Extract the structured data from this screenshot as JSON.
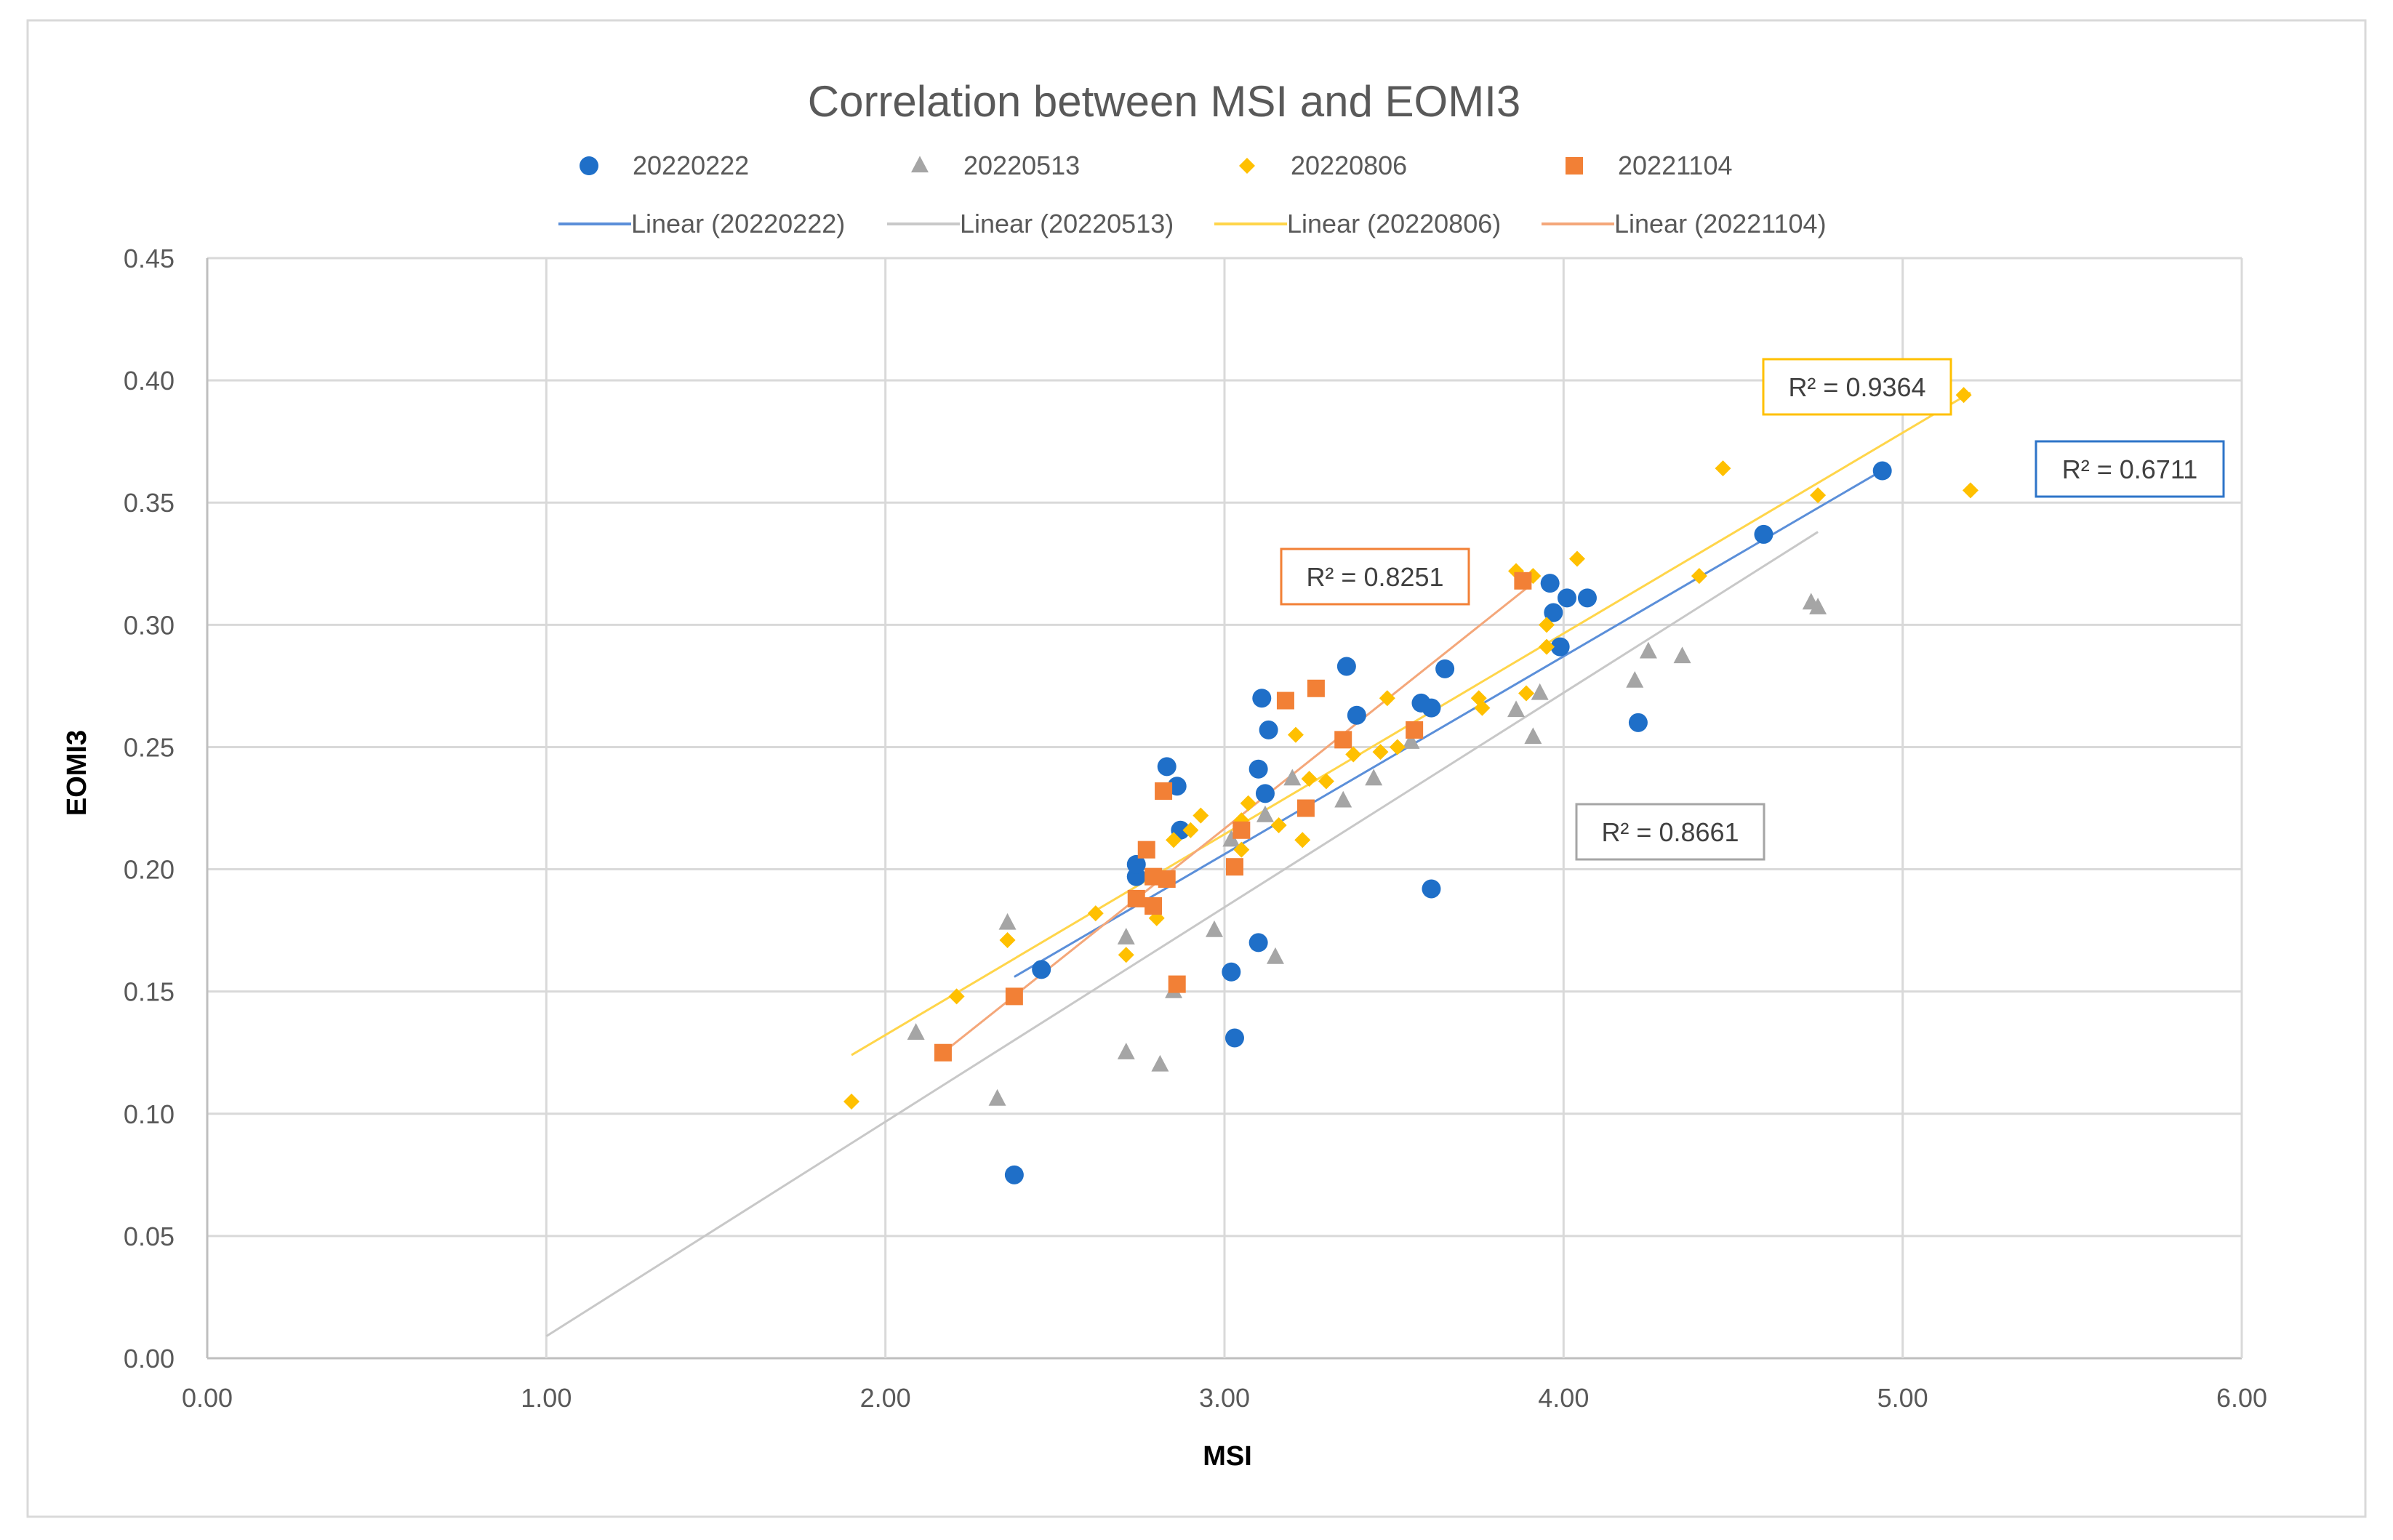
{
  "chart_data": {
    "type": "scatter",
    "title": "Correlation between MSI and EOMI3",
    "xlabel": "MSI",
    "ylabel": "EOMI3",
    "xlim": [
      0,
      6
    ],
    "ylim": [
      0,
      0.45
    ],
    "x_ticks": [
      "0.00",
      "1.00",
      "2.00",
      "3.00",
      "4.00",
      "5.00",
      "6.00"
    ],
    "y_ticks": [
      "0.00",
      "0.05",
      "0.10",
      "0.15",
      "0.20",
      "0.25",
      "0.30",
      "0.35",
      "0.40",
      "0.45"
    ],
    "grid": true,
    "legend_position": "top",
    "series": [
      {
        "name": "20220222",
        "marker": "circle",
        "color": "#1f6fc8",
        "trend_label": "Linear (20220222)",
        "trend_color": "#5b8fd9",
        "trend_x": [
          2.38,
          4.95
        ],
        "trend_y": [
          0.156,
          0.364
        ],
        "r2_label": "R² = 0.6711",
        "points": [
          [
            2.38,
            0.075
          ],
          [
            2.46,
            0.159
          ],
          [
            2.74,
            0.197
          ],
          [
            2.74,
            0.202
          ],
          [
            2.83,
            0.242
          ],
          [
            2.86,
            0.234
          ],
          [
            2.87,
            0.216
          ],
          [
            3.02,
            0.158
          ],
          [
            3.03,
            0.131
          ],
          [
            3.1,
            0.17
          ],
          [
            3.1,
            0.241
          ],
          [
            3.11,
            0.27
          ],
          [
            3.12,
            0.231
          ],
          [
            3.13,
            0.257
          ],
          [
            3.36,
            0.283
          ],
          [
            3.39,
            0.263
          ],
          [
            3.58,
            0.268
          ],
          [
            3.61,
            0.192
          ],
          [
            3.61,
            0.266
          ],
          [
            3.65,
            0.282
          ],
          [
            3.96,
            0.317
          ],
          [
            3.97,
            0.305
          ],
          [
            3.99,
            0.291
          ],
          [
            4.01,
            0.311
          ],
          [
            4.07,
            0.311
          ],
          [
            4.22,
            0.26
          ],
          [
            4.59,
            0.337
          ],
          [
            4.94,
            0.363
          ]
        ]
      },
      {
        "name": "20220513",
        "marker": "triangle",
        "color": "#a5a5a5",
        "trend_label": "Linear (20220513)",
        "trend_color": "#c8c8c8",
        "trend_x": [
          1.0,
          4.75
        ],
        "trend_y": [
          0.009,
          0.338
        ],
        "r2_label": "R² = 0.8661",
        "points": [
          [
            2.09,
            0.133
          ],
          [
            2.33,
            0.106
          ],
          [
            2.36,
            0.178
          ],
          [
            2.71,
            0.125
          ],
          [
            2.71,
            0.172
          ],
          [
            2.81,
            0.12
          ],
          [
            2.85,
            0.15
          ],
          [
            2.97,
            0.175
          ],
          [
            3.02,
            0.212
          ],
          [
            3.12,
            0.222
          ],
          [
            3.15,
            0.164
          ],
          [
            3.2,
            0.237
          ],
          [
            3.35,
            0.228
          ],
          [
            3.44,
            0.237
          ],
          [
            3.55,
            0.252
          ],
          [
            3.86,
            0.265
          ],
          [
            3.91,
            0.254
          ],
          [
            3.93,
            0.272
          ],
          [
            4.21,
            0.277
          ],
          [
            4.25,
            0.289
          ],
          [
            4.35,
            0.287
          ],
          [
            4.73,
            0.309
          ],
          [
            4.75,
            0.307
          ]
        ]
      },
      {
        "name": "20220806",
        "marker": "diamond",
        "color": "#ffc000",
        "trend_label": "Linear (20220806)",
        "trend_color": "#ffd54a",
        "trend_x": [
          1.9,
          5.2
        ],
        "trend_y": [
          0.124,
          0.395
        ],
        "r2_label": "R² = 0.9364",
        "points": [
          [
            1.9,
            0.105
          ],
          [
            2.21,
            0.148
          ],
          [
            2.36,
            0.171
          ],
          [
            2.62,
            0.182
          ],
          [
            2.71,
            0.165
          ],
          [
            2.8,
            0.18
          ],
          [
            2.83,
            0.196
          ],
          [
            2.85,
            0.212
          ],
          [
            2.9,
            0.216
          ],
          [
            2.93,
            0.222
          ],
          [
            3.05,
            0.208
          ],
          [
            3.05,
            0.22
          ],
          [
            3.07,
            0.227
          ],
          [
            3.16,
            0.218
          ],
          [
            3.21,
            0.255
          ],
          [
            3.23,
            0.212
          ],
          [
            3.25,
            0.237
          ],
          [
            3.3,
            0.236
          ],
          [
            3.38,
            0.247
          ],
          [
            3.46,
            0.248
          ],
          [
            3.48,
            0.27
          ],
          [
            3.51,
            0.25
          ],
          [
            3.75,
            0.27
          ],
          [
            3.76,
            0.266
          ],
          [
            3.86,
            0.322
          ],
          [
            3.89,
            0.272
          ],
          [
            3.91,
            0.32
          ],
          [
            3.95,
            0.3
          ],
          [
            3.95,
            0.291
          ],
          [
            4.04,
            0.327
          ],
          [
            4.4,
            0.32
          ],
          [
            4.47,
            0.364
          ],
          [
            4.75,
            0.353
          ],
          [
            5.18,
            0.394
          ],
          [
            5.2,
            0.355
          ]
        ]
      },
      {
        "name": "20221104",
        "marker": "square",
        "color": "#f28036",
        "trend_label": "Linear (20221104)",
        "trend_color": "#f4a77a",
        "trend_x": [
          2.17,
          3.9
        ],
        "trend_y": [
          0.125,
          0.316
        ],
        "r2_label": "R² = 0.8251",
        "points": [
          [
            2.17,
            0.125
          ],
          [
            2.38,
            0.148
          ],
          [
            2.74,
            0.188
          ],
          [
            2.77,
            0.208
          ],
          [
            2.79,
            0.185
          ],
          [
            2.79,
            0.197
          ],
          [
            2.82,
            0.232
          ],
          [
            2.83,
            0.196
          ],
          [
            2.86,
            0.153
          ],
          [
            3.03,
            0.201
          ],
          [
            3.05,
            0.216
          ],
          [
            3.18,
            0.269
          ],
          [
            3.24,
            0.225
          ],
          [
            3.27,
            0.274
          ],
          [
            3.35,
            0.253
          ],
          [
            3.56,
            0.257
          ],
          [
            3.88,
            0.318
          ]
        ]
      }
    ]
  }
}
